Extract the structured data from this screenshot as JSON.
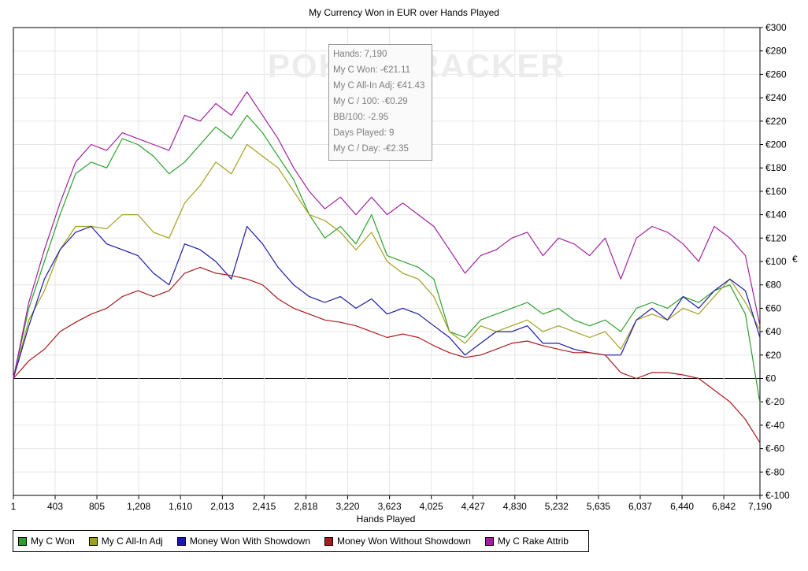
{
  "chart_data": {
    "type": "line",
    "title": "My Currency Won in EUR over Hands Played",
    "xlabel": "Hands Played",
    "ylabel": "€",
    "xlim": [
      1,
      7190
    ],
    "ylim": [
      -100,
      300
    ],
    "x_ticks": [
      1,
      403,
      805,
      1208,
      1610,
      2013,
      2415,
      2818,
      3220,
      3623,
      4025,
      4427,
      4830,
      5232,
      5635,
      6037,
      6440,
      6842,
      7190
    ],
    "x_tick_labels": [
      "1",
      "403",
      "805",
      "1,208",
      "1,610",
      "2,013",
      "2,415",
      "2,818",
      "3,220",
      "3,623",
      "4,025",
      "4,427",
      "4,830",
      "5,232",
      "5,635",
      "6,037",
      "6,440",
      "6,842",
      "7,190"
    ],
    "y_ticks": [
      -100,
      -80,
      -60,
      -40,
      -20,
      0,
      20,
      40,
      60,
      80,
      100,
      120,
      140,
      160,
      180,
      200,
      220,
      240,
      260,
      280,
      300
    ],
    "y_tick_labels": [
      "€-100",
      "€-80",
      "€-60",
      "€-40",
      "€-20",
      "€0",
      "€20",
      "€40",
      "€60",
      "€80",
      "€100",
      "€120",
      "€140",
      "€160",
      "€180",
      "€200",
      "€220",
      "€240",
      "€260",
      "€280",
      "€300"
    ],
    "grid": true,
    "legend_position": "bottom-left",
    "x": [
      1,
      150,
      300,
      450,
      600,
      750,
      900,
      1050,
      1200,
      1350,
      1500,
      1650,
      1800,
      1950,
      2100,
      2250,
      2400,
      2550,
      2700,
      2850,
      3000,
      3150,
      3300,
      3450,
      3600,
      3750,
      3900,
      4050,
      4200,
      4350,
      4500,
      4650,
      4800,
      4950,
      5100,
      5250,
      5400,
      5550,
      5700,
      5850,
      6000,
      6150,
      6300,
      6450,
      6600,
      6750,
      6900,
      7050,
      7190
    ],
    "series": [
      {
        "name": "My C Won",
        "color": "#2ca02c",
        "values": [
          0,
          60,
          100,
          140,
          175,
          185,
          180,
          205,
          200,
          190,
          175,
          185,
          200,
          215,
          205,
          225,
          210,
          190,
          170,
          140,
          120,
          130,
          115,
          140,
          105,
          100,
          95,
          85,
          40,
          35,
          50,
          55,
          60,
          65,
          55,
          60,
          50,
          45,
          50,
          40,
          60,
          65,
          60,
          70,
          65,
          75,
          80,
          55,
          -21.11
        ]
      },
      {
        "name": "My C All-In Adj",
        "color": "#a0a020",
        "values": [
          0,
          50,
          75,
          110,
          130,
          130,
          128,
          140,
          140,
          125,
          120,
          150,
          165,
          185,
          175,
          200,
          190,
          180,
          160,
          140,
          135,
          125,
          110,
          125,
          100,
          90,
          85,
          70,
          40,
          30,
          45,
          40,
          45,
          50,
          40,
          45,
          40,
          35,
          40,
          25,
          50,
          55,
          50,
          60,
          55,
          70,
          85,
          65,
          41.43
        ]
      },
      {
        "name": "Money Won With Showdown",
        "color": "#1a1aaa",
        "values": [
          0,
          45,
          85,
          110,
          125,
          130,
          115,
          110,
          105,
          90,
          80,
          115,
          110,
          100,
          85,
          130,
          115,
          95,
          80,
          70,
          65,
          70,
          60,
          68,
          55,
          60,
          55,
          45,
          35,
          20,
          30,
          40,
          40,
          45,
          30,
          30,
          25,
          22,
          20,
          20,
          50,
          60,
          50,
          70,
          60,
          75,
          85,
          75,
          35
        ]
      },
      {
        "name": "Money Won Without Showdown",
        "color": "#aa1a1a",
        "values": [
          0,
          15,
          25,
          40,
          48,
          55,
          60,
          70,
          75,
          70,
          75,
          90,
          95,
          90,
          88,
          85,
          80,
          68,
          60,
          55,
          50,
          48,
          45,
          40,
          35,
          38,
          35,
          28,
          22,
          18,
          20,
          25,
          30,
          32,
          28,
          25,
          22,
          22,
          20,
          5,
          0,
          5,
          5,
          3,
          0,
          -10,
          -20,
          -35,
          -55
        ]
      },
      {
        "name": "My C Rake Attrib",
        "color": "#a020a0",
        "values": [
          0,
          65,
          110,
          150,
          185,
          200,
          195,
          210,
          205,
          200,
          195,
          225,
          220,
          235,
          225,
          245,
          225,
          205,
          180,
          160,
          145,
          155,
          140,
          155,
          140,
          150,
          140,
          130,
          110,
          90,
          105,
          110,
          120,
          125,
          105,
          120,
          115,
          105,
          120,
          85,
          120,
          130,
          125,
          115,
          100,
          130,
          120,
          105,
          45
        ]
      }
    ]
  },
  "watermark": "POKERTRACKER",
  "tooltip": {
    "lines": [
      "Hands: 7,190",
      "My C Won: -€21.11",
      "My C All-In Adj: €41.43",
      "My C / 100: -€0.29",
      "BB/100: -2.95",
      "Days Played: 9",
      "My C / Day: -€2.35"
    ]
  },
  "legend": {
    "items": [
      {
        "label": "My C Won",
        "color": "#2ca02c"
      },
      {
        "label": "My C All-In Adj",
        "color": "#a0a020"
      },
      {
        "label": "Money Won With Showdown",
        "color": "#1a1aaa"
      },
      {
        "label": "Money Won Without Showdown",
        "color": "#aa1a1a"
      },
      {
        "label": "My C Rake Attrib",
        "color": "#a020a0"
      }
    ]
  }
}
